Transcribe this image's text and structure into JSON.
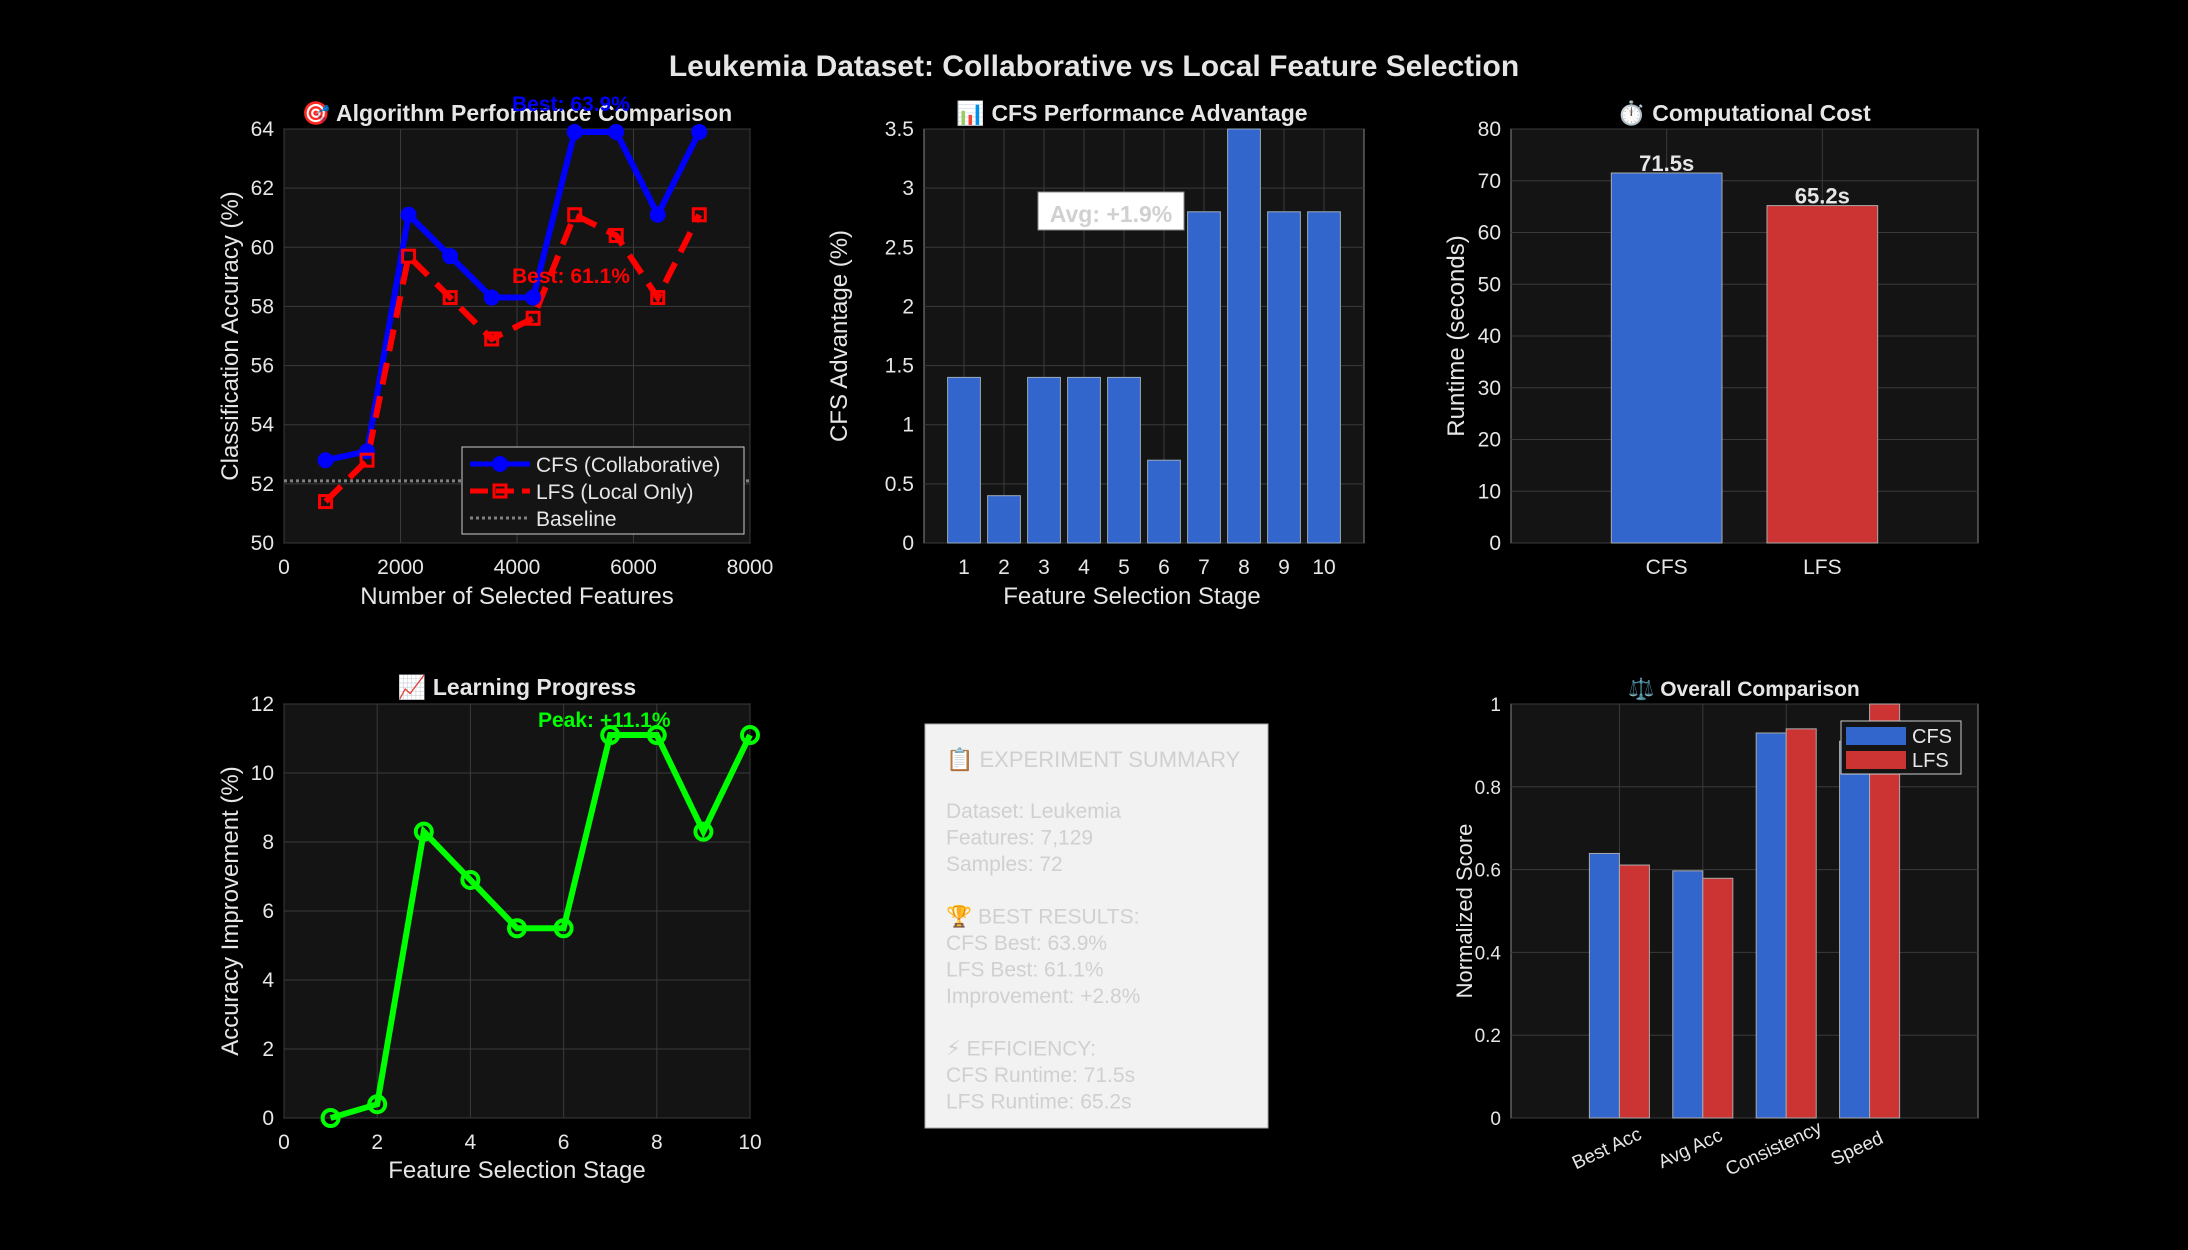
{
  "figure": {
    "title": "Leukemia Dataset: Collaborative vs Local Feature Selection",
    "colors": {
      "background": "#000000",
      "axes_bg": "#141414",
      "grid": "#3a3a3a",
      "text": "#e6e6e6",
      "cfs_line": "#0000ff",
      "lfs_line": "#ff0000",
      "bar_blue": "#3366cc",
      "bar_red": "#cc3333",
      "green": "#00ff00",
      "baseline": "#808080"
    }
  },
  "summary": {
    "title": "📋 EXPERIMENT SUMMARY",
    "lines": [
      "Dataset: Leukemia",
      "Features: 7,129",
      "Samples: 72",
      "",
      "🏆 BEST RESULTS:",
      "CFS Best: 63.9%",
      "LFS Best: 61.1%",
      "Improvement: +2.8%",
      "",
      "⚡ EFFICIENCY:",
      "CFS Runtime: 71.5s",
      "LFS Runtime: 65.2s"
    ]
  },
  "chart_data": [
    {
      "id": "perf",
      "type": "line",
      "title": "🎯 Algorithm Performance Comparison",
      "xlabel": "Number of Selected Features",
      "ylabel": "Classification Accuracy (%)",
      "xlim": [
        0,
        8000
      ],
      "ylim": [
        50,
        64
      ],
      "xticks": [
        0,
        2000,
        4000,
        6000,
        8000
      ],
      "yticks": [
        50,
        52,
        54,
        56,
        58,
        60,
        62,
        64
      ],
      "grid": true,
      "legend_position": "bottom-right",
      "series": [
        {
          "name": "CFS (Collaborative)",
          "x": [
            713,
            1426,
            2139,
            2852,
            3565,
            4277,
            4990,
            5703,
            6416,
            7129
          ],
          "y": [
            52.8,
            53.1,
            61.1,
            59.7,
            58.3,
            58.3,
            63.9,
            63.9,
            61.1,
            63.9
          ]
        },
        {
          "name": "LFS (Local Only)",
          "x": [
            713,
            1426,
            2139,
            2852,
            3565,
            4277,
            4990,
            5703,
            6416,
            7129
          ],
          "y": [
            51.4,
            52.8,
            59.7,
            58.3,
            56.9,
            57.6,
            61.1,
            60.4,
            58.3,
            61.1
          ]
        },
        {
          "name": "Baseline",
          "y_constant": 52.1
        }
      ],
      "annotations": [
        "Best: 63.9%",
        "Best: 61.1%"
      ]
    },
    {
      "id": "adv",
      "type": "bar",
      "title": "📊 CFS Performance Advantage",
      "xlabel": "Feature Selection Stage",
      "ylabel": "CFS Advantage (%)",
      "categories": [
        "1",
        "2",
        "3",
        "4",
        "5",
        "6",
        "7",
        "8",
        "9",
        "10"
      ],
      "values": [
        1.4,
        0.4,
        1.4,
        1.4,
        1.4,
        0.7,
        2.8,
        3.5,
        2.8,
        2.8
      ],
      "ylim": [
        0,
        3.5
      ],
      "yticks": [
        0,
        0.5,
        1,
        1.5,
        2,
        2.5,
        3,
        3.5
      ],
      "grid": true,
      "annotation": "Avg: +1.9%"
    },
    {
      "id": "cost",
      "type": "bar",
      "title": "⏱️ Computational Cost",
      "ylabel": "Runtime (seconds)",
      "categories": [
        "CFS",
        "LFS"
      ],
      "values": [
        71.5,
        65.2
      ],
      "value_labels": [
        "71.5s",
        "65.2s"
      ],
      "ylim": [
        0,
        80
      ],
      "yticks": [
        0,
        10,
        20,
        30,
        40,
        50,
        60,
        70,
        80
      ],
      "grid": true
    },
    {
      "id": "learn",
      "type": "line",
      "title": "📈 Learning Progress",
      "xlabel": "Feature Selection Stage",
      "ylabel": "Accuracy Improvement (%)",
      "xlim": [
        0,
        10
      ],
      "ylim": [
        0,
        12
      ],
      "xticks": [
        0,
        2,
        4,
        6,
        8,
        10
      ],
      "yticks": [
        0,
        2,
        4,
        6,
        8,
        10,
        12
      ],
      "grid": true,
      "x": [
        1,
        2,
        3,
        4,
        5,
        6,
        7,
        8,
        9,
        10
      ],
      "y": [
        0,
        0.4,
        8.3,
        6.9,
        5.5,
        5.5,
        11.1,
        11.1,
        8.3,
        11.1
      ],
      "annotation": "Peak: +11.1%"
    },
    {
      "id": "overall",
      "type": "bar",
      "title": "⚖️ Overall Comparison",
      "ylabel": "Normalized Score",
      "categories": [
        "Best Acc",
        "Avg Acc",
        "Consistency",
        "Speed"
      ],
      "series": [
        {
          "name": "CFS",
          "values": [
            0.639,
            0.597,
            0.93,
            0.91
          ]
        },
        {
          "name": "LFS",
          "values": [
            0.611,
            0.579,
            0.94,
            1.0
          ]
        }
      ],
      "ylim": [
        0,
        1
      ],
      "yticks": [
        0,
        0.2,
        0.4,
        0.6,
        0.8,
        1
      ],
      "yticklabels": [
        "0",
        "0.2",
        "0.4",
        "0.6",
        "0.8",
        "1"
      ],
      "grid": true,
      "legend_position": "top-right"
    }
  ]
}
